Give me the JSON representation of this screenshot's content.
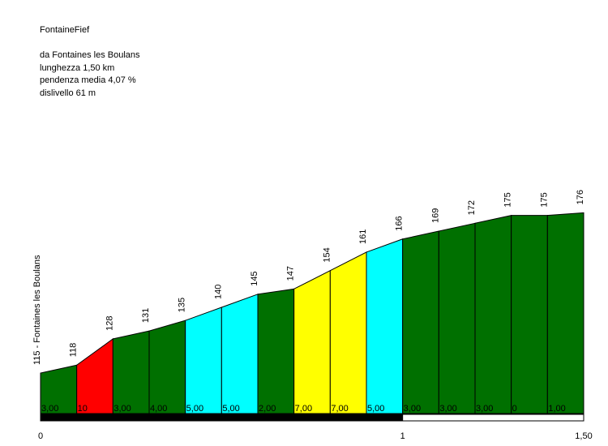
{
  "header": {
    "title": "FontaineFief",
    "start": "da Fontaines les Boulans",
    "length": "lunghezza 1,50 km",
    "gradient": "pendenza media 4,07 %",
    "climb": "dislivello 61 m"
  },
  "colors": {
    "green": "#007000",
    "red": "#ff0000",
    "cyan": "#00ffff",
    "yellow": "#ffff00",
    "background": "#ffffff",
    "outline": "#000000"
  },
  "chart_data": {
    "type": "area",
    "title": "FontaineFief",
    "start_label": "115 - Fontaines les Boulans",
    "x": [
      0,
      0.1,
      0.2,
      0.3,
      0.4,
      0.5,
      0.6,
      0.7,
      0.8,
      0.9,
      1.0,
      1.1,
      1.2,
      1.3,
      1.4,
      1.5
    ],
    "elevations": [
      115,
      118,
      128,
      131,
      135,
      140,
      145,
      147,
      154,
      161,
      166,
      169,
      172,
      175,
      175,
      176
    ],
    "elevation_labels": [
      "118",
      "128",
      "131",
      "135",
      "140",
      "145",
      "147",
      "154",
      "161",
      "166",
      "169",
      "172",
      "175",
      "175",
      "176"
    ],
    "segment_gradients": [
      "3,00",
      "10",
      "3,00",
      "4,00",
      "5,00",
      "5,00",
      "2,00",
      "7,00",
      "7,00",
      "5,00",
      "3,00",
      "3,00",
      "3,00",
      "0",
      "1,00"
    ],
    "segment_colors": [
      "green",
      "red",
      "green",
      "green",
      "cyan",
      "cyan",
      "green",
      "yellow",
      "yellow",
      "cyan",
      "green",
      "green",
      "green",
      "green",
      "green"
    ],
    "x_ticks": [
      {
        "value": 0,
        "label": "0"
      },
      {
        "value": 1,
        "label": "1"
      },
      {
        "value": 1.5,
        "label": "1,50"
      }
    ],
    "xlim": [
      0,
      1.5
    ],
    "grid": false
  }
}
